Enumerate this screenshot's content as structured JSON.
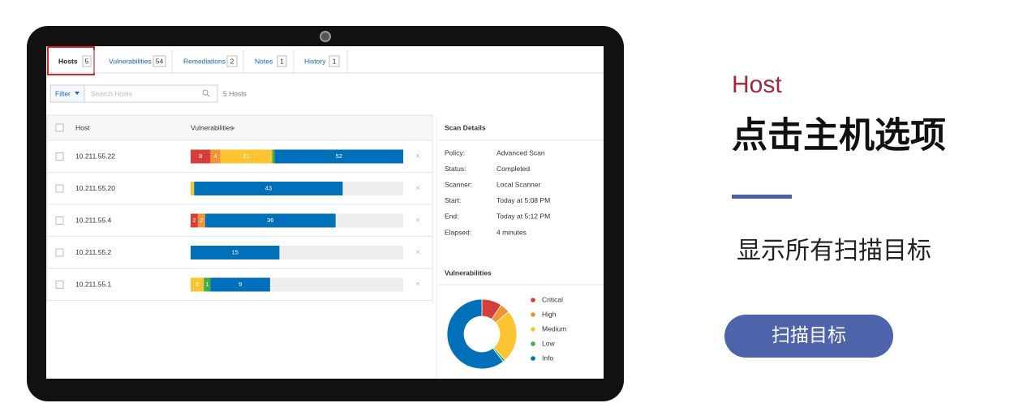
{
  "tabs": [
    {
      "label": "Hosts",
      "count": "5"
    },
    {
      "label": "Vulnerabilities",
      "count": "54"
    },
    {
      "label": "Remediations",
      "count": "2"
    },
    {
      "label": "Notes",
      "count": "1"
    },
    {
      "label": "History",
      "count": "1"
    }
  ],
  "filter": {
    "button": "Filter",
    "search_placeholder": "Search Hosts",
    "result": "5 Hosts"
  },
  "severities": [
    {
      "name": "Critical",
      "color": "#d43f3a"
    },
    {
      "name": "High",
      "color": "#ee9336"
    },
    {
      "name": "Medium",
      "color": "#fdc431"
    },
    {
      "name": "Low",
      "color": "#3fae49"
    },
    {
      "name": "Info",
      "color": "#0071b9"
    }
  ],
  "table": {
    "columns": [
      "Host",
      "Vulnerabilities"
    ],
    "rows": [
      {
        "host": "10.211.55.22",
        "values": [
          8,
          4,
          21,
          1,
          52
        ],
        "value_labels": [
          "8",
          "4",
          "21",
          null,
          "52"
        ]
      },
      {
        "host": "10.211.55.20",
        "values": [
          0,
          0,
          1,
          0,
          43
        ],
        "value_labels": [
          null,
          null,
          null,
          null,
          "43"
        ]
      },
      {
        "host": "10.211.55.4",
        "values": [
          2,
          2,
          0,
          0,
          36
        ],
        "value_labels": [
          "2",
          "2",
          null,
          null,
          "36"
        ]
      },
      {
        "host": "10.211.55.2",
        "values": [
          0,
          0,
          0,
          0,
          15
        ],
        "value_labels": [
          null,
          null,
          null,
          null,
          "15"
        ]
      },
      {
        "host": "10.211.55.1",
        "values": [
          0,
          0,
          2,
          1,
          9
        ],
        "value_labels": [
          null,
          null,
          "2",
          "1",
          "9"
        ]
      }
    ]
  },
  "scan_details": {
    "title": "Scan Details",
    "items": [
      {
        "key": "Policy:",
        "value": "Advanced Scan"
      },
      {
        "key": "Status:",
        "value": "Completed"
      },
      {
        "key": "Scanner:",
        "value": "Local Scanner"
      },
      {
        "key": "Start:",
        "value": "Today at 5:08 PM"
      },
      {
        "key": "End:",
        "value": "Today at 5:12 PM"
      },
      {
        "key": "Elapsed:",
        "value": "4 minutes"
      }
    ]
  },
  "donut": {
    "title": "Vulnerabilities",
    "values": [
      8,
      4,
      21,
      1,
      52
    ]
  },
  "slide": {
    "kicker": "Host",
    "headline": "点击主机选项",
    "description": "显示所有扫描目标",
    "button": "扫描目标"
  }
}
